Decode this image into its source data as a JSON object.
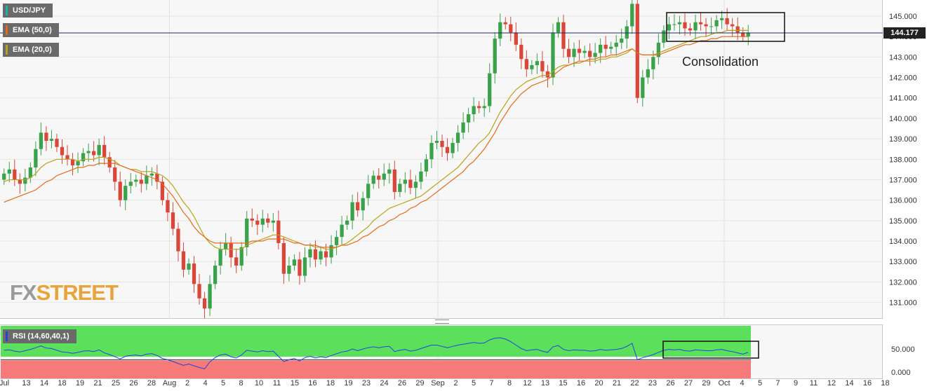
{
  "legend": {
    "symbol": "USD/JPY",
    "ema50": "EMA (50,0)",
    "ema20": "EMA (20,0)",
    "ema50_color": "#e46a1a",
    "ema20_color": "#b8a21c",
    "symbol_color": "#1ab3a6"
  },
  "last_price_label": "144.177",
  "annotation": "Consolidation",
  "logo": {
    "part1": "FX",
    "part2": "STREET"
  },
  "rsi": {
    "label": "RSI (14,60,40,1)",
    "upper_zone_color": "#5ce05c",
    "lower_zone_color": "#f77a7a",
    "line_color": "#2244dd",
    "y_ticks": [
      "50.000",
      "0.000"
    ]
  },
  "chart_data": {
    "type": "line",
    "series_kind": "candlestick",
    "x_axis": {
      "labels": [
        "Jul",
        "13",
        "14",
        "18",
        "19",
        "21",
        "25",
        "26",
        "28",
        "Aug",
        "2",
        "4",
        "5",
        "8",
        "10",
        "11",
        "15",
        "16",
        "18",
        "19",
        "23",
        "24",
        "26",
        "29",
        "Sep",
        "2",
        "5",
        "7",
        "8",
        "12",
        "13",
        "15",
        "16",
        "20",
        "21",
        "22",
        "23",
        "26",
        "27",
        "29",
        "Oct",
        "4",
        "5",
        "7",
        "9",
        "11",
        "12",
        "14",
        "16",
        "18"
      ]
    },
    "y_axis": {
      "ticks": [
        "145.000",
        "144.000",
        "143.000",
        "142.000",
        "141.000",
        "140.000",
        "139.000",
        "138.000",
        "137.000",
        "136.000",
        "135.000",
        "134.000",
        "133.000",
        "132.000",
        "131.000"
      ],
      "ylim": [
        130.3,
        145.65
      ]
    },
    "last_price": 144.177,
    "close_series": [
      137.3,
      137.5,
      137.0,
      136.8,
      137.1,
      137.6,
      138.5,
      139.3,
      138.9,
      139.0,
      138.6,
      138.2,
      138.0,
      137.7,
      137.9,
      138.3,
      138.4,
      138.2,
      138.7,
      138.1,
      137.6,
      136.9,
      136.0,
      136.7,
      136.9,
      137.0,
      136.8,
      137.2,
      137.3,
      136.9,
      136.0,
      135.4,
      134.6,
      133.5,
      132.6,
      132.9,
      131.9,
      131.2,
      130.7,
      131.9,
      132.8,
      133.6,
      133.9,
      133.2,
      132.8,
      133.7,
      135.1,
      135.0,
      134.8,
      135.1,
      134.9,
      135.0,
      133.9,
      132.4,
      132.8,
      133.1,
      132.3,
      133.2,
      133.6,
      133.1,
      133.5,
      133.2,
      133.8,
      134.2,
      134.8,
      135.0,
      135.9,
      135.5,
      136.1,
      136.8,
      137.2,
      137.0,
      137.3,
      137.5,
      136.4,
      136.8,
      137.0,
      136.6,
      136.9,
      137.4,
      138.0,
      138.8,
      138.9,
      138.6,
      138.3,
      138.8,
      139.3,
      139.8,
      140.2,
      140.6,
      140.5,
      140.6,
      142.2,
      143.9,
      144.7,
      144.6,
      144.2,
      143.6,
      142.9,
      142.4,
      142.6,
      142.8,
      142.3,
      142.0,
      144.2,
      144.7,
      143.4,
      143.0,
      143.4,
      143.2,
      143.3,
      143.0,
      143.2,
      143.6,
      143.4,
      143.5,
      143.7,
      143.9,
      144.5,
      145.6,
      141.0,
      142.0,
      142.4,
      143.0,
      143.7,
      144.3,
      144.6,
      144.6,
      144.7,
      144.4,
      144.3,
      144.7,
      144.6,
      144.5,
      144.5,
      144.8,
      144.9,
      144.6,
      144.5,
      144.2,
      144.0,
      144.2
    ],
    "ema20": [
      136.9,
      137.0,
      137.0,
      137.0,
      137.0,
      137.1,
      137.3,
      137.6,
      137.8,
      137.9,
      138.0,
      138.0,
      138.0,
      138.0,
      137.9,
      138.0,
      138.0,
      138.0,
      138.1,
      138.1,
      138.0,
      137.9,
      137.7,
      137.6,
      137.5,
      137.5,
      137.4,
      137.4,
      137.4,
      137.3,
      137.2,
      137.0,
      136.7,
      136.3,
      135.9,
      135.6,
      135.2,
      134.7,
      134.2,
      133.9,
      133.7,
      133.6,
      133.6,
      133.6,
      133.6,
      133.6,
      133.8,
      133.9,
      134.0,
      134.1,
      134.2,
      134.3,
      134.3,
      134.2,
      134.1,
      134.0,
      133.9,
      133.8,
      133.8,
      133.7,
      133.7,
      133.6,
      133.6,
      133.7,
      133.8,
      133.9,
      134.1,
      134.3,
      134.5,
      134.7,
      135.0,
      135.2,
      135.4,
      135.6,
      135.7,
      135.8,
      135.9,
      136.0,
      136.1,
      136.2,
      136.4,
      136.6,
      136.8,
      137.0,
      137.2,
      137.4,
      137.6,
      137.9,
      138.2,
      138.5,
      138.8,
      139.0,
      139.3,
      139.8,
      140.3,
      140.7,
      141.1,
      141.4,
      141.6,
      141.8,
      141.9,
      142.0,
      142.1,
      142.1,
      142.3,
      142.5,
      142.6,
      142.6,
      142.7,
      142.7,
      142.8,
      142.8,
      142.8,
      142.9,
      142.9,
      143.0,
      143.0,
      143.1,
      143.2,
      143.4,
      143.2,
      143.1,
      143.1,
      143.1,
      143.2,
      143.3,
      143.4,
      143.5,
      143.6,
      143.7,
      143.8,
      143.9,
      144.0,
      144.0,
      144.1,
      144.2,
      144.2,
      144.3,
      144.3,
      144.3,
      144.3,
      144.3
    ],
    "ema50": [
      135.9,
      136.0,
      136.1,
      136.2,
      136.3,
      136.4,
      136.5,
      136.7,
      136.9,
      137.0,
      137.2,
      137.3,
      137.4,
      137.5,
      137.6,
      137.6,
      137.7,
      137.7,
      137.8,
      137.8,
      137.8,
      137.8,
      137.7,
      137.6,
      137.5,
      137.4,
      137.3,
      137.2,
      137.1,
      137.0,
      136.8,
      136.5,
      136.2,
      135.8,
      135.4,
      135.1,
      134.7,
      134.4,
      134.2,
      134.0,
      133.9,
      133.9,
      133.9,
      133.9,
      133.9,
      133.9,
      133.9,
      134.0,
      134.0,
      134.0,
      134.1,
      134.1,
      134.1,
      134.1,
      134.0,
      133.9,
      133.9,
      133.8,
      133.8,
      133.8,
      133.7,
      133.7,
      133.7,
      133.7,
      133.8,
      133.8,
      133.9,
      134.0,
      134.2,
      134.3,
      134.5,
      134.7,
      134.8,
      135.0,
      135.1,
      135.3,
      135.4,
      135.6,
      135.7,
      135.9,
      136.0,
      136.2,
      136.4,
      136.6,
      136.8,
      137.0,
      137.2,
      137.4,
      137.7,
      137.9,
      138.2,
      138.5,
      138.9,
      139.3,
      139.8,
      140.2,
      140.6,
      140.9,
      141.2,
      141.4,
      141.6,
      141.7,
      141.8,
      141.9,
      142.1,
      142.3,
      142.5,
      142.6,
      142.7,
      142.8,
      142.8,
      142.9,
      142.9,
      143.0,
      143.0,
      143.1,
      143.1,
      143.2,
      143.3,
      143.4,
      143.2,
      143.1,
      143.1,
      143.1,
      143.1,
      143.2,
      143.3,
      143.4,
      143.5,
      143.6,
      143.6,
      143.7,
      143.8,
      143.8,
      143.9,
      143.9,
      144.0,
      144.0,
      144.0,
      144.0,
      144.0,
      144.0
    ],
    "rsi_series": [
      62,
      63,
      60,
      58,
      61,
      64,
      68,
      72,
      67,
      66,
      62,
      58,
      57,
      55,
      57,
      60,
      61,
      59,
      63,
      56,
      52,
      47,
      42,
      48,
      50,
      51,
      49,
      53,
      54,
      50,
      43,
      40,
      36,
      31,
      27,
      30,
      26,
      22,
      19,
      35,
      45,
      51,
      53,
      47,
      44,
      51,
      62,
      60,
      58,
      61,
      59,
      60,
      48,
      36,
      40,
      43,
      37,
      45,
      48,
      44,
      47,
      45,
      50,
      54,
      58,
      60,
      65,
      61,
      65,
      68,
      70,
      68,
      70,
      71,
      59,
      62,
      64,
      60,
      62,
      66,
      70,
      74,
      74,
      71,
      68,
      71,
      74,
      76,
      78,
      80,
      78,
      79,
      86,
      90,
      91,
      88,
      82,
      74,
      66,
      61,
      63,
      64,
      60,
      57,
      70,
      73,
      64,
      61,
      63,
      62,
      62,
      60,
      61,
      64,
      62,
      63,
      64,
      66,
      71,
      78,
      40,
      45,
      48,
      52,
      57,
      62,
      64,
      63,
      64,
      61,
      60,
      63,
      62,
      61,
      61,
      63,
      64,
      61,
      59,
      56,
      53,
      57
    ]
  }
}
